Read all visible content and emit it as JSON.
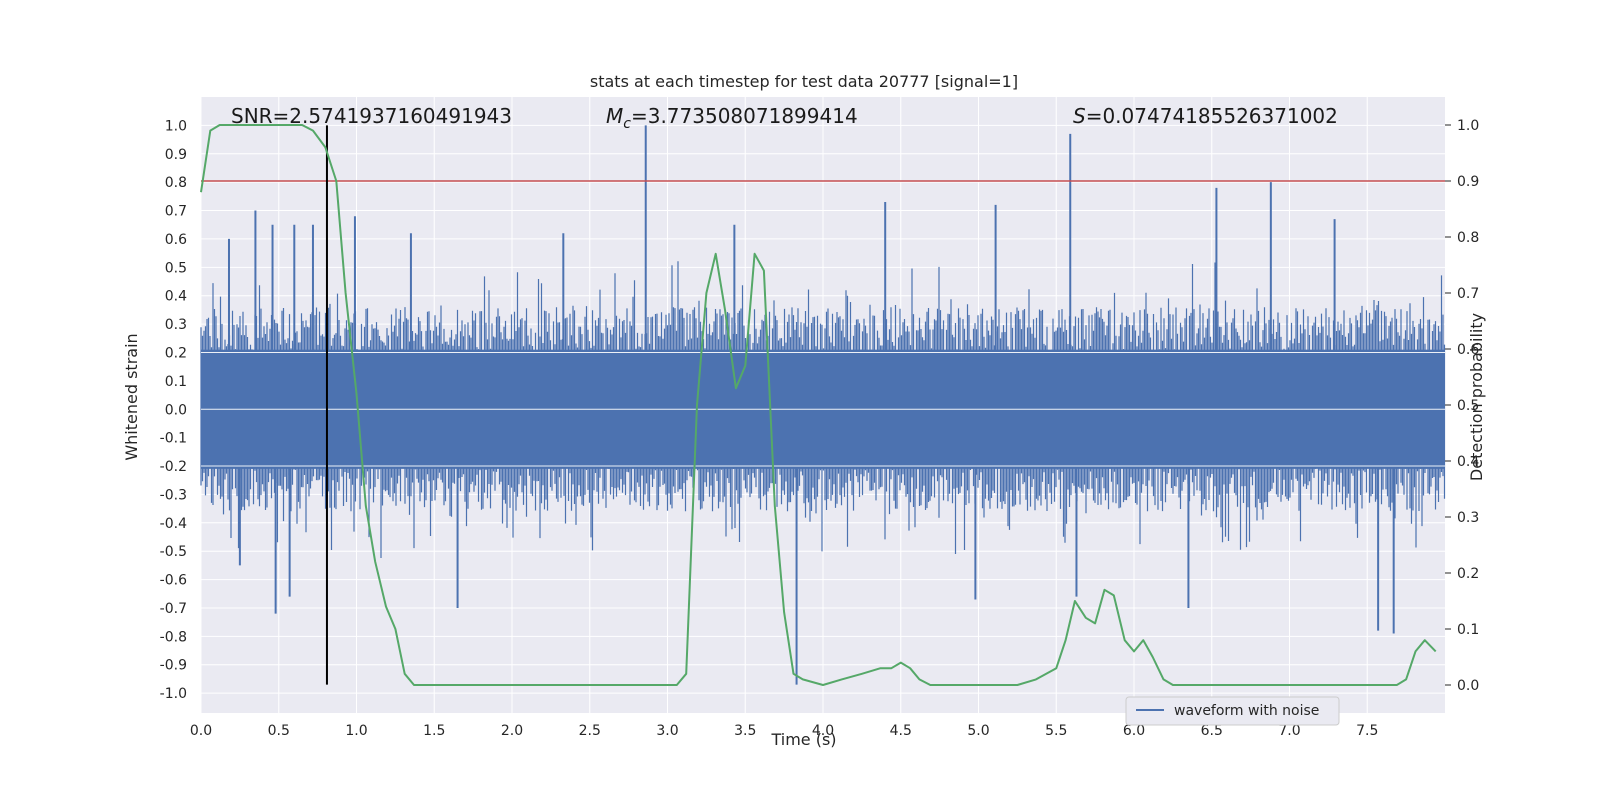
{
  "chart_data": {
    "type": "line",
    "title": "stats at each timestep for test data 20777 [signal=1]",
    "xlabel": "Time (s)",
    "ylabel_left": "Whitened strain",
    "ylabel_right": "Detection probability",
    "xlim": [
      0.0,
      8.0
    ],
    "ylim_left": [
      -1.07,
      1.1
    ],
    "ylim_right": [
      -0.05,
      1.05
    ],
    "x_ticks": [
      "0.0",
      "0.5",
      "1.0",
      "1.5",
      "2.0",
      "2.5",
      "3.0",
      "3.5",
      "4.0",
      "4.5",
      "5.0",
      "5.5",
      "6.0",
      "6.5",
      "7.0",
      "7.5"
    ],
    "y_ticks_left": [
      "1.0",
      "0.9",
      "0.8",
      "0.7",
      "0.6",
      "0.5",
      "0.4",
      "0.3",
      "0.2",
      "0.1",
      "0.0",
      "-0.1",
      "-0.2",
      "-0.3",
      "-0.4",
      "-0.5",
      "-0.6",
      "-0.7",
      "-0.8",
      "-0.9",
      "-1.0"
    ],
    "y_ticks_right": [
      "1.0",
      "0.9",
      "0.8",
      "0.7",
      "0.6",
      "0.5",
      "0.4",
      "0.3",
      "0.2",
      "0.1",
      "0.0"
    ],
    "grid": true,
    "legend_position": "bottom-right",
    "annotations": {
      "snr": "SNR=2.5741937160491943",
      "mc_symbol": "M",
      "mc_sub": "c",
      "mc_value": "=3.773508071899414",
      "s_symbol": "S",
      "s_value": "=0.07474185526371002"
    },
    "threshold": {
      "value": 0.9,
      "axis": "right"
    },
    "marker": {
      "x": 0.81
    },
    "waveform": {
      "name": "waveform with noise",
      "envelope_upper": 0.36,
      "envelope_lower": -0.36,
      "spikes": [
        {
          "x": 0.18,
          "y": 0.6
        },
        {
          "x": 0.35,
          "y": 0.7
        },
        {
          "x": 0.46,
          "y": 0.65
        },
        {
          "x": 0.6,
          "y": 0.65
        },
        {
          "x": 0.72,
          "y": 0.65
        },
        {
          "x": 0.99,
          "y": 0.68
        },
        {
          "x": 1.35,
          "y": 0.62
        },
        {
          "x": 2.33,
          "y": 0.62
        },
        {
          "x": 2.86,
          "y": 1.0
        },
        {
          "x": 3.43,
          "y": 0.65
        },
        {
          "x": 4.4,
          "y": 0.73
        },
        {
          "x": 5.11,
          "y": 0.72
        },
        {
          "x": 5.59,
          "y": 0.97
        },
        {
          "x": 6.53,
          "y": 0.78
        },
        {
          "x": 6.88,
          "y": 0.8
        },
        {
          "x": 7.29,
          "y": 0.67
        },
        {
          "x": 0.48,
          "y": -0.72
        },
        {
          "x": 0.57,
          "y": -0.66
        },
        {
          "x": 1.65,
          "y": -0.7
        },
        {
          "x": 3.83,
          "y": -0.97
        },
        {
          "x": 4.98,
          "y": -0.67
        },
        {
          "x": 5.63,
          "y": -0.66
        },
        {
          "x": 7.57,
          "y": -0.78
        },
        {
          "x": 7.67,
          "y": -0.79
        },
        {
          "x": 0.25,
          "y": -0.55
        },
        {
          "x": 6.35,
          "y": -0.7
        }
      ]
    },
    "series": [
      {
        "axis": "right",
        "color": "#55a868",
        "x": [
          0.0,
          0.06,
          0.12,
          0.25,
          0.5,
          0.65,
          0.72,
          0.8,
          0.87,
          0.93,
          1.0,
          1.06,
          1.12,
          1.19,
          1.25,
          1.31,
          1.37,
          1.5,
          1.75,
          2.0,
          2.25,
          2.5,
          2.75,
          2.87,
          2.94,
          3.0,
          3.06,
          3.12,
          3.19,
          3.25,
          3.31,
          3.37,
          3.44,
          3.5,
          3.56,
          3.62,
          3.69,
          3.75,
          3.81,
          3.87,
          4.0,
          4.12,
          4.25,
          4.37,
          4.44,
          4.5,
          4.56,
          4.62,
          4.69,
          4.75,
          5.0,
          5.25,
          5.37,
          5.5,
          5.56,
          5.62,
          5.69,
          5.75,
          5.81,
          5.87,
          5.94,
          6.0,
          6.06,
          6.12,
          6.19,
          6.25,
          6.5,
          6.75,
          7.0,
          7.25,
          7.5,
          7.62,
          7.69,
          7.75,
          7.81,
          7.87,
          7.94
        ],
        "y": [
          0.88,
          0.99,
          1.0,
          1.0,
          1.0,
          1.0,
          0.99,
          0.96,
          0.9,
          0.7,
          0.52,
          0.32,
          0.22,
          0.14,
          0.1,
          0.02,
          0.0,
          0.0,
          0.0,
          0.0,
          0.0,
          0.0,
          0.0,
          0.0,
          0.0,
          0.0,
          0.0,
          0.02,
          0.5,
          0.7,
          0.77,
          0.67,
          0.53,
          0.57,
          0.77,
          0.74,
          0.32,
          0.13,
          0.02,
          0.01,
          0.0,
          0.01,
          0.02,
          0.03,
          0.03,
          0.04,
          0.03,
          0.01,
          0.0,
          0.0,
          0.0,
          0.0,
          0.01,
          0.03,
          0.08,
          0.15,
          0.12,
          0.11,
          0.17,
          0.16,
          0.08,
          0.06,
          0.08,
          0.05,
          0.01,
          0.0,
          0.0,
          0.0,
          0.0,
          0.0,
          0.0,
          0.0,
          0.0,
          0.01,
          0.06,
          0.08,
          0.06
        ]
      }
    ]
  }
}
